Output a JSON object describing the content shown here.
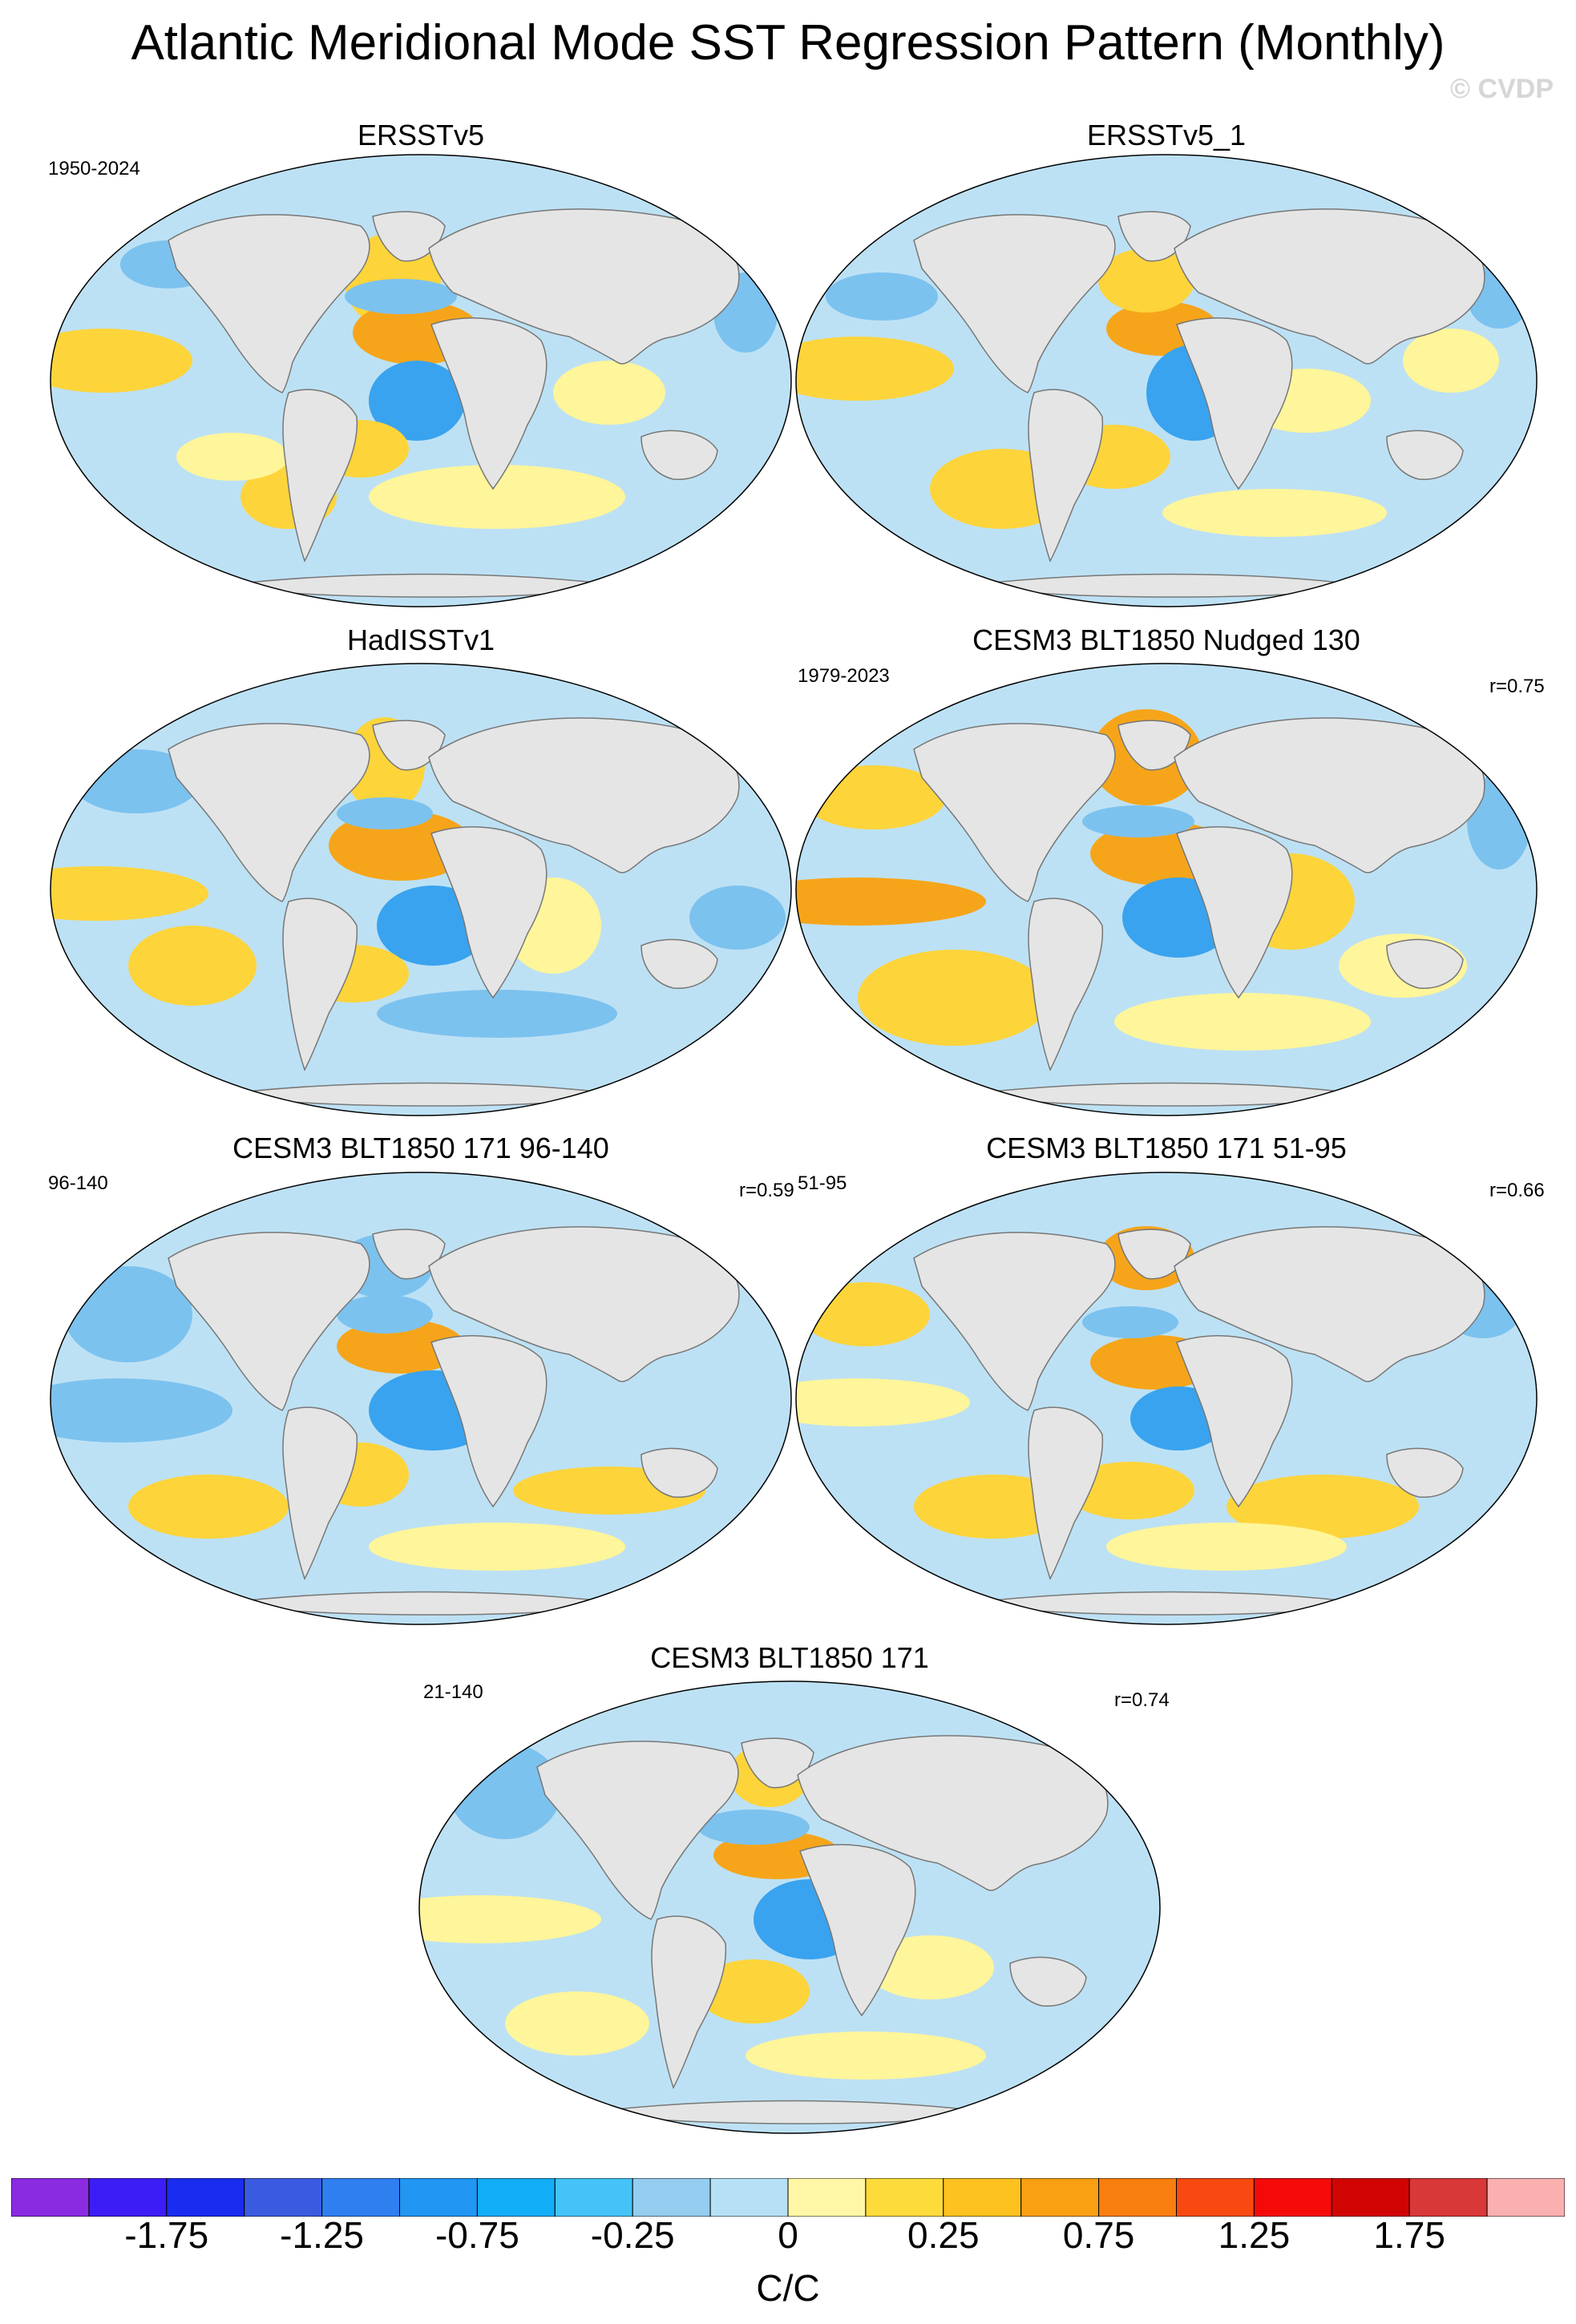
{
  "title": "Atlantic Meridional Mode SST Regression Pattern (Monthly)",
  "credit": "© CVDP",
  "colors": {
    "land": "#e5e5e5",
    "ocean_base": "#bde1f4",
    "warm": "#fff59a",
    "warmer": "#fdd43a",
    "hot": "#f6a51a",
    "cool": "#7cc2ef",
    "cold": "#39a3ef"
  },
  "panels": [
    {
      "title": "ERSSTv5",
      "left_label": "1950-2024",
      "right_label": ""
    },
    {
      "title": "ERSSTv5_1",
      "left_label": "",
      "right_label": ""
    },
    {
      "title": "HadISSTv1",
      "left_label": "",
      "right_label": ""
    },
    {
      "title": "CESM3 BLT1850 Nudged 130",
      "left_label": "1979-2023",
      "right_label": "r=0.75"
    },
    {
      "title": "CESM3 BLT1850 171 96-140",
      "left_label": "96-140",
      "right_label": "r=0.59"
    },
    {
      "title": "CESM3 BLT1850 171 51-95",
      "left_label": "51-95",
      "right_label": "r=0.66"
    },
    {
      "title": "CESM3 BLT1850 171",
      "left_label": "21-140",
      "right_label": "r=0.74"
    }
  ],
  "colorbar": {
    "units": "C/C",
    "colors": [
      "#8a2be2",
      "#3d1df5",
      "#1a2cf0",
      "#3a5be0",
      "#2f7ff0",
      "#2196f3",
      "#12adf7",
      "#44c3f7",
      "#94cdef",
      "#b6e0f6",
      "#fff7a6",
      "#fddb3a",
      "#fdc21f",
      "#f9a012",
      "#f97e10",
      "#f84a10",
      "#f50a0a",
      "#d10404",
      "#d93838",
      "#fbb0b0"
    ],
    "tick_labels": [
      "-1.75",
      "-1.25",
      "-0.75",
      "-0.25",
      "0",
      "0.25",
      "0.75",
      "1.25",
      "1.75"
    ]
  }
}
